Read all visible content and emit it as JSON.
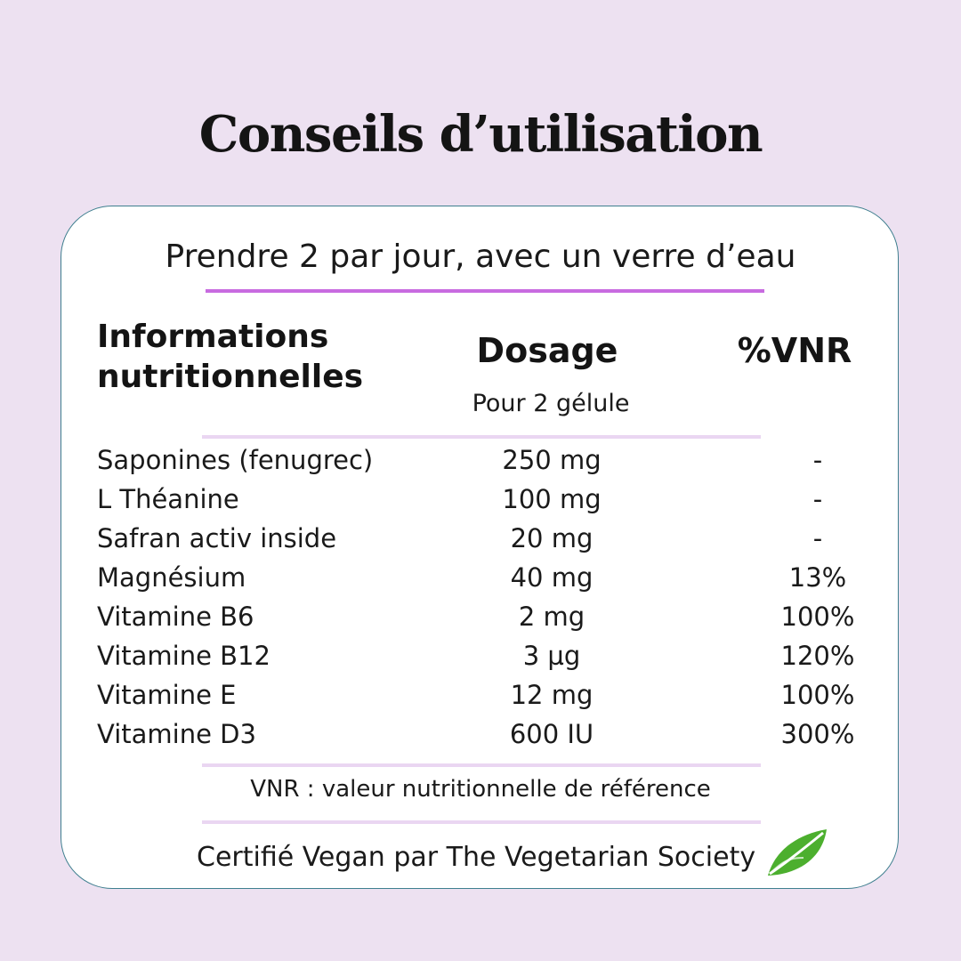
{
  "title": "Conseils d’utilisation",
  "usage": "Prendre 2 par jour, avec un verre d’eau",
  "table": {
    "header_info_line1": "Informations",
    "header_info_line2": "nutritionnelles",
    "header_dosage": "Dosage",
    "header_dosage_sub": "Pour 2 gélule",
    "header_vnr": "%VNR",
    "rows": [
      {
        "name": "Saponines (fenugrec)",
        "dosage": "250 mg",
        "vnr": "-"
      },
      {
        "name": "L Théanine",
        "dosage": "100 mg",
        "vnr": "-"
      },
      {
        "name": "Safran activ inside",
        "dosage": "20 mg",
        "vnr": "-"
      },
      {
        "name": "Magnésium",
        "dosage": "40 mg",
        "vnr": "13%"
      },
      {
        "name": "Vitamine B6",
        "dosage": "2 mg",
        "vnr": "100%"
      },
      {
        "name": "Vitamine B12",
        "dosage": "3 µg",
        "vnr": "120%"
      },
      {
        "name": "Vitamine E",
        "dosage": "12 mg",
        "vnr": "100%"
      },
      {
        "name": "Vitamine D3",
        "dosage": "600 IU",
        "vnr": "300%"
      }
    ]
  },
  "note": "VNR : valeur nutritionnelle de référence",
  "certification": "Certifié Vegan par The Vegetarian Society",
  "icons": {
    "leaf": "leaf-icon"
  },
  "colors": {
    "background": "#ede1f1",
    "accent_rule": "#c86be0",
    "light_rule": "#ead6f2",
    "leaf_green": "#4caf2e"
  }
}
